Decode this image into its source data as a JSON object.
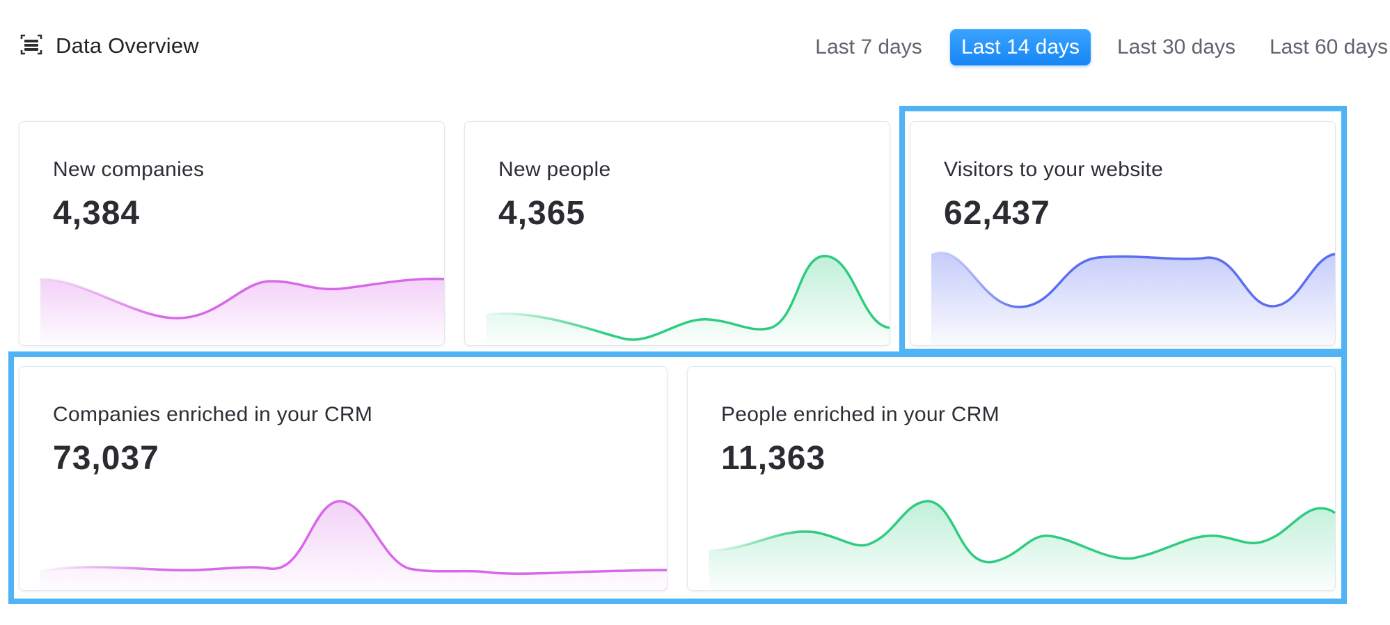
{
  "header": {
    "title": "Data Overview",
    "icon": "overview-icon"
  },
  "ranges": [
    {
      "label": "Last 7 days",
      "active": false
    },
    {
      "label": "Last 14 days",
      "active": true
    },
    {
      "label": "Last 30 days",
      "active": false
    },
    {
      "label": "Last 60 days",
      "active": false
    }
  ],
  "cards": [
    {
      "label": "New companies",
      "value": "4,384",
      "color": "#d768e8"
    },
    {
      "label": "New people",
      "value": "4,365",
      "color": "#2ecc80"
    },
    {
      "label": "Visitors to your website",
      "value": "62,437",
      "color": "#5b6ef0"
    },
    {
      "label": "Companies enriched in your CRM",
      "value": "73,037",
      "color": "#d768e8"
    },
    {
      "label": "People enriched in your CRM",
      "value": "11,363",
      "color": "#2ecc80"
    }
  ],
  "colors": {
    "accent": "#1786f5",
    "highlight": "#4fb3f6"
  }
}
